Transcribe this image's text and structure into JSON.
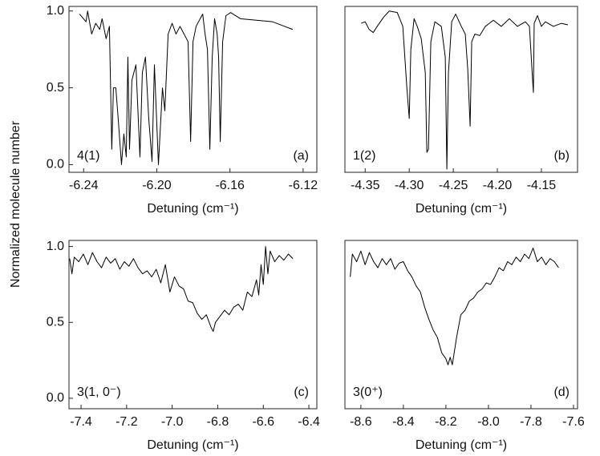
{
  "chart_data": [
    {
      "type": "line",
      "ylabel": "Normalized molecule number",
      "xlabel": "Detuning (cm⁻¹)",
      "annotation": "4(1)",
      "panel_label": "(a)",
      "color": "#000000",
      "xlim": [
        -6.248,
        -6.1125
      ],
      "ylim": [
        -0.05,
        1.03
      ],
      "xticks": [
        -6.24,
        {
          "value": -6.2,
          "label": "-6.20"
        },
        -6.16,
        -6.12
      ],
      "yticks": [
        {
          "value": 0,
          "label": "0.0"
        },
        0.5,
        {
          "value": 1,
          "label": "1.0"
        }
      ],
      "x": [
        -6.2422,
        -6.2387,
        -6.2378,
        -6.2356,
        -6.2334,
        -6.2312,
        -6.2299,
        -6.2277,
        -6.2259,
        -6.2246,
        -6.2237,
        -6.2224,
        -6.2211,
        -6.2193,
        -6.218,
        -6.2167,
        -6.2158,
        -6.2149,
        -6.2136,
        -6.2114,
        -6.2092,
        -6.2079,
        -6.2062,
        -6.2044,
        -6.2026,
        -6.2013,
        -6.1991,
        -6.1969,
        -6.1956,
        -6.1938,
        -6.1916,
        -6.1895,
        -6.1873,
        -6.1851,
        -6.1829,
        -6.1815,
        -6.1802,
        -6.1785,
        -6.1763,
        -6.1749,
        -6.1736,
        -6.1723,
        -6.171,
        -6.1697,
        -6.1684,
        -6.167,
        -6.1662,
        -6.1653,
        -6.164,
        -6.1622,
        -6.1596,
        -6.1543,
        -6.1455,
        -6.1367,
        -6.1301,
        -6.1257
      ],
      "values": [
        0.98,
        0.93,
        1.0,
        0.85,
        0.92,
        0.88,
        0.95,
        0.82,
        0.9,
        0.1,
        0.5,
        0.5,
        0.3,
        0.0,
        0.2,
        0.05,
        0.7,
        0.1,
        0.55,
        0.65,
        0.05,
        0.6,
        0.7,
        0.3,
        0.02,
        0.65,
        0.0,
        0.5,
        0.35,
        0.85,
        0.92,
        0.85,
        0.9,
        0.85,
        0.8,
        0.15,
        0.8,
        0.9,
        0.95,
        0.98,
        0.85,
        0.75,
        0.1,
        0.7,
        0.95,
        0.85,
        0.7,
        0.15,
        0.8,
        0.97,
        0.99,
        0.95,
        0.94,
        0.93,
        0.9,
        0.88
      ]
    },
    {
      "type": "line",
      "xlabel": "Detuning (cm⁻¹)",
      "annotation": "1(2)",
      "panel_label": "(b)",
      "color": "#000000",
      "xlim": [
        -4.373,
        -4.109
      ],
      "ylim": [
        -0.05,
        1.03
      ],
      "xticks": [
        -4.35,
        {
          "value": -4.3,
          "label": "-4.30"
        },
        -4.25,
        {
          "value": -4.2,
          "label": "-4.20"
        },
        -4.15
      ],
      "x": [
        -4.3545,
        -4.35,
        -4.3455,
        -4.3409,
        -4.3364,
        -4.3291,
        -4.3227,
        -4.3136,
        -4.3073,
        -4.3027,
        -4.3,
        -4.2982,
        -4.2945,
        -4.2909,
        -4.2864,
        -4.2818,
        -4.28,
        -4.2782,
        -4.2755,
        -4.2709,
        -4.2636,
        -4.2591,
        -4.2573,
        -4.2555,
        -4.2518,
        -4.2473,
        -4.2409,
        -4.2364,
        -4.2336,
        -4.2309,
        -4.2291,
        -4.2255,
        -4.22,
        -4.2136,
        -4.2045,
        -4.1955,
        -4.1864,
        -4.1773,
        -4.1682,
        -4.1636,
        -4.16,
        -4.1591,
        -4.1582,
        -4.1545,
        -4.15,
        -4.1455,
        -4.1364,
        -4.1273,
        -4.12
      ],
      "values": [
        0.92,
        0.93,
        0.88,
        0.86,
        0.9,
        0.96,
        1.0,
        0.99,
        0.9,
        0.5,
        0.3,
        0.75,
        0.95,
        0.9,
        0.82,
        0.6,
        0.08,
        0.1,
        0.8,
        0.93,
        0.9,
        0.7,
        -0.03,
        0.6,
        0.93,
        0.98,
        0.9,
        0.85,
        0.62,
        0.25,
        0.8,
        0.85,
        0.84,
        0.9,
        0.94,
        0.9,
        0.95,
        0.9,
        0.93,
        0.9,
        0.55,
        0.47,
        0.92,
        0.97,
        0.9,
        0.93,
        0.9,
        0.92,
        0.91
      ]
    },
    {
      "type": "line",
      "xlabel": "Detuning (cm⁻¹)",
      "annotation": "3(1, 0⁻)",
      "panel_label": "(c)",
      "color": "#000000",
      "xlim": [
        -7.453,
        -6.365
      ],
      "ylim": [
        -0.069,
        1.04
      ],
      "xticks": [
        -7.4,
        -7.2,
        {
          "value": -7,
          "label": "-7.0"
        },
        -6.8,
        -6.6,
        -6.4
      ],
      "yticks": [
        {
          "value": 0,
          "label": "0.0"
        },
        0.5,
        {
          "value": 1,
          "label": "1.0"
        }
      ],
      "x": [
        -7.45,
        -7.44,
        -7.43,
        -7.41,
        -7.39,
        -7.37,
        -7.35,
        -7.33,
        -7.31,
        -7.29,
        -7.27,
        -7.25,
        -7.23,
        -7.21,
        -7.19,
        -7.17,
        -7.15,
        -7.13,
        -7.11,
        -7.09,
        -7.07,
        -7.05,
        -7.03,
        -7.01,
        -6.99,
        -6.97,
        -6.95,
        -6.93,
        -6.91,
        -6.89,
        -6.87,
        -6.85,
        -6.83,
        -6.82,
        -6.81,
        -6.79,
        -6.77,
        -6.75,
        -6.73,
        -6.71,
        -6.69,
        -6.67,
        -6.65,
        -6.63,
        -6.62,
        -6.61,
        -6.6,
        -6.59,
        -6.58,
        -6.57,
        -6.55,
        -6.53,
        -6.51,
        -6.49,
        -6.47
      ],
      "values": [
        0.92,
        0.82,
        0.93,
        0.9,
        0.95,
        0.88,
        0.96,
        0.9,
        0.86,
        0.93,
        0.89,
        0.92,
        0.85,
        0.9,
        0.87,
        0.92,
        0.86,
        0.82,
        0.84,
        0.8,
        0.85,
        0.76,
        0.88,
        0.7,
        0.8,
        0.74,
        0.72,
        0.64,
        0.63,
        0.56,
        0.52,
        0.55,
        0.47,
        0.44,
        0.5,
        0.54,
        0.58,
        0.55,
        0.6,
        0.62,
        0.58,
        0.7,
        0.67,
        0.78,
        0.68,
        0.88,
        0.75,
        1.0,
        0.82,
        0.97,
        0.9,
        0.94,
        0.91,
        0.95,
        0.92
      ]
    },
    {
      "type": "line",
      "xlabel": "Detuning (cm⁻¹)",
      "annotation": "3(0⁺)",
      "panel_label": "(d)",
      "color": "#000000",
      "xlim": [
        -8.675,
        -7.581
      ],
      "ylim": [
        -0.069,
        1.04
      ],
      "xticks": [
        -8.6,
        -8.4,
        -8.2,
        {
          "value": -8,
          "label": "-8.0"
        },
        -7.8,
        -7.6
      ],
      "x": [
        -8.65,
        -8.64,
        -8.62,
        -8.6,
        -8.58,
        -8.56,
        -8.54,
        -8.52,
        -8.5,
        -8.48,
        -8.46,
        -8.44,
        -8.42,
        -8.4,
        -8.38,
        -8.36,
        -8.34,
        -8.32,
        -8.3,
        -8.28,
        -8.26,
        -8.24,
        -8.22,
        -8.2,
        -8.19,
        -8.18,
        -8.17,
        -8.15,
        -8.13,
        -8.11,
        -8.09,
        -8.07,
        -8.05,
        -8.03,
        -8.01,
        -7.99,
        -7.97,
        -7.95,
        -7.93,
        -7.91,
        -7.89,
        -7.87,
        -7.85,
        -7.83,
        -7.81,
        -7.79,
        -7.77,
        -7.75,
        -7.73,
        -7.71,
        -7.69,
        -7.67
      ],
      "values": [
        0.8,
        0.95,
        0.9,
        0.97,
        0.88,
        0.96,
        0.9,
        0.86,
        0.92,
        0.88,
        0.92,
        0.85,
        0.89,
        0.9,
        0.84,
        0.8,
        0.74,
        0.7,
        0.6,
        0.52,
        0.45,
        0.4,
        0.3,
        0.26,
        0.22,
        0.27,
        0.22,
        0.4,
        0.55,
        0.58,
        0.64,
        0.66,
        0.7,
        0.72,
        0.76,
        0.75,
        0.8,
        0.86,
        0.84,
        0.9,
        0.88,
        0.93,
        0.9,
        0.95,
        0.92,
        0.99,
        0.9,
        0.93,
        0.88,
        0.92,
        0.9,
        0.86
      ]
    }
  ]
}
